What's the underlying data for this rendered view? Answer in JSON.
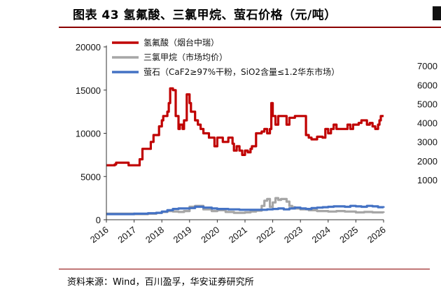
{
  "header": {
    "title": "图表 43 氢氟酸、三氯甲烷、萤石价格（元/吨）"
  },
  "footer": {
    "source": "资料来源：Wind，百川盈孚，华安证券研究所"
  },
  "chart_data": {
    "type": "line",
    "title": "图表 43 氢氟酸、三氯甲烷、萤石价格（元/吨）",
    "xlabel": "",
    "ylabel": "",
    "x_ticks": [
      "2016",
      "2017",
      "2018",
      "2019",
      "2020",
      "2021",
      "2022",
      "2023",
      "2024",
      "2025",
      "2026"
    ],
    "y_ticks_left": [
      "0",
      "5000",
      "10000",
      "15000",
      "20000"
    ],
    "ylim_left": [
      0,
      20000
    ],
    "y_ticks_right_visible": [
      "1000",
      "2000",
      "3000",
      "4000",
      "5000",
      "6000",
      "7000"
    ],
    "ylim_right": [
      0,
      8000
    ],
    "xlim": [
      2016.0,
      2026.0
    ],
    "grid": false,
    "legend_position": "top-left",
    "series": [
      {
        "name": "氢氟酸（烟台中瑞）",
        "color": "#c00000",
        "x": [
          2016.0,
          2016.3,
          2016.35,
          2016.8,
          2017.2,
          2017.3,
          2017.6,
          2017.7,
          2017.9,
          2018.0,
          2018.05,
          2018.2,
          2018.25,
          2018.3,
          2018.4,
          2018.5,
          2018.6,
          2018.65,
          2018.75,
          2018.8,
          2018.9,
          2019.0,
          2019.05,
          2019.2,
          2019.3,
          2019.4,
          2019.5,
          2019.7,
          2019.9,
          2020.0,
          2020.2,
          2020.4,
          2020.55,
          2020.6,
          2020.7,
          2020.8,
          2020.9,
          2021.0,
          2021.1,
          2021.2,
          2021.25,
          2021.4,
          2021.6,
          2021.7,
          2021.8,
          2021.9,
          2021.95,
          2022.0,
          2022.1,
          2022.2,
          2022.4,
          2022.5,
          2022.6,
          2022.8,
          2023.0,
          2023.1,
          2023.2,
          2023.3,
          2023.4,
          2023.6,
          2023.8,
          2023.9,
          2024.0,
          2024.1,
          2024.2,
          2024.3,
          2024.5,
          2024.7,
          2024.8,
          2024.9,
          2025.0,
          2025.1,
          2025.2,
          2025.4,
          2025.5,
          2025.6,
          2025.7,
          2025.8,
          2025.85,
          2025.9,
          2026.0
        ],
        "values": [
          6300,
          6400,
          6600,
          6300,
          7000,
          8200,
          9000,
          9800,
          10800,
          11500,
          12000,
          12500,
          13500,
          15200,
          15000,
          12000,
          10500,
          11000,
          10500,
          11500,
          14500,
          13500,
          12500,
          11500,
          11000,
          10500,
          10000,
          9500,
          8500,
          9500,
          9000,
          9500,
          8800,
          8000,
          8500,
          8000,
          7500,
          8000,
          7800,
          8200,
          8500,
          10000,
          10200,
          10500,
          10000,
          10500,
          13500,
          12000,
          11000,
          12000,
          12000,
          11000,
          11800,
          12000,
          12000,
          12000,
          9800,
          9500,
          9300,
          9600,
          9500,
          10500,
          10000,
          10500,
          11000,
          10500,
          10500,
          11000,
          10500,
          11000,
          11000,
          11200,
          11500,
          11000,
          11200,
          10800,
          10500,
          11000,
          11500,
          12000,
          12000
        ]
      },
      {
        "name": "三氯甲烷（市场均价）",
        "color": "#a6a6a6",
        "x": [
          2016.0,
          2016.5,
          2017.0,
          2017.5,
          2017.8,
          2018.0,
          2018.2,
          2018.4,
          2018.6,
          2018.8,
          2019.0,
          2019.2,
          2019.5,
          2019.8,
          2020.0,
          2020.3,
          2020.6,
          2021.0,
          2021.2,
          2021.4,
          2021.6,
          2021.7,
          2021.8,
          2021.9,
          2022.0,
          2022.1,
          2022.2,
          2022.3,
          2022.5,
          2022.6,
          2022.7,
          2022.8,
          2023.0,
          2023.3,
          2023.6,
          2024.0,
          2024.3,
          2024.6,
          2025.0,
          2025.3,
          2025.6,
          2026.0
        ],
        "values": [
          700,
          700,
          650,
          700,
          800,
          900,
          1000,
          950,
          900,
          1000,
          1500,
          1600,
          1200,
          1000,
          1100,
          900,
          800,
          850,
          950,
          1050,
          1600,
          2200,
          2400,
          1500,
          2000,
          2500,
          2300,
          2400,
          2100,
          1600,
          1450,
          1300,
          1200,
          1100,
          1000,
          950,
          1000,
          950,
          850,
          900,
          850,
          800
        ]
      },
      {
        "name": "萤石（CaF2≥97%干粉，SiO2含量≤1.2华东市场）",
        "color": "#4472c4",
        "x": [
          2016.0,
          2016.5,
          2017.0,
          2017.5,
          2017.8,
          2018.0,
          2018.2,
          2018.4,
          2018.6,
          2018.8,
          2019.0,
          2019.2,
          2019.5,
          2019.8,
          2020.0,
          2020.2,
          2020.4,
          2020.6,
          2020.8,
          2021.0,
          2021.2,
          2021.4,
          2021.6,
          2021.8,
          2022.0,
          2022.2,
          2022.4,
          2022.6,
          2022.8,
          2023.0,
          2023.2,
          2023.4,
          2023.6,
          2023.8,
          2024.0,
          2024.2,
          2024.4,
          2024.6,
          2024.8,
          2025.0,
          2025.2,
          2025.4,
          2025.6,
          2025.8,
          2026.0
        ],
        "values": [
          650,
          650,
          700,
          750,
          800,
          950,
          1100,
          1250,
          1300,
          1300,
          1350,
          1500,
          1400,
          1300,
          1250,
          1250,
          1200,
          1200,
          1150,
          1150,
          1150,
          1150,
          1150,
          1200,
          1250,
          1300,
          1200,
          1300,
          1400,
          1300,
          1250,
          1350,
          1400,
          1450,
          1500,
          1550,
          1550,
          1500,
          1600,
          1550,
          1500,
          1600,
          1550,
          1450,
          1400
        ]
      }
    ]
  }
}
